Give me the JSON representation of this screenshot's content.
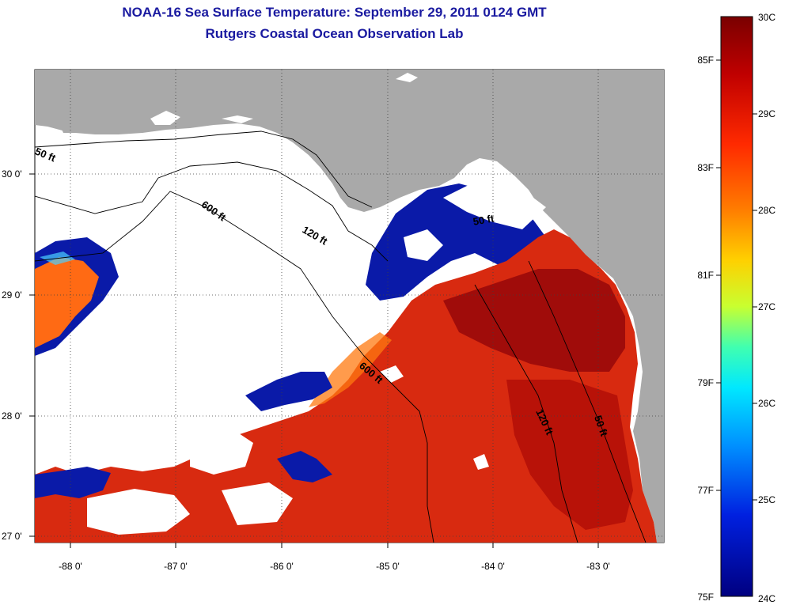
{
  "title": {
    "line1": "NOAA-16 Sea Surface Temperature:  September 29, 2011 0124 GMT",
    "line2": "Rutgers Coastal Ocean Observation Lab"
  },
  "axes": {
    "lon_ticks": [
      "-88 0'",
      "-87 0'",
      "-86 0'",
      "-85 0'",
      "-84 0'",
      "-83 0'"
    ],
    "lat_ticks": [
      "30 0'",
      "29 0'",
      "28 0'",
      "27 0'"
    ]
  },
  "contours": {
    "c50_west": "50 ft",
    "c600_nw": "600 ft",
    "c120_nw": "120 ft",
    "c50_ne": "50 ft",
    "c600_s": "600 ft",
    "c120_s": "120 ft",
    "c50_se": "50 ft"
  },
  "colorbar": {
    "fahrenheit": [
      "85F",
      "83F",
      "81F",
      "79F",
      "77F",
      "75F"
    ],
    "celsius": [
      "30C",
      "29C",
      "28C",
      "27C",
      "26C",
      "25C",
      "24C"
    ],
    "colors": [
      "#7a0000",
      "#d00000",
      "#ff3000",
      "#ff8c00",
      "#ffd000",
      "#a8ff40",
      "#30ffc0",
      "#00c8ff",
      "#0070ff",
      "#0010d0",
      "#000080"
    ]
  },
  "colors": {
    "land": "#a9a9a9",
    "warm_water": "#d82a10",
    "hot_water": "#a00c0a",
    "cool_fringe": "#0a1aa8",
    "cloud": "#ffffff"
  }
}
